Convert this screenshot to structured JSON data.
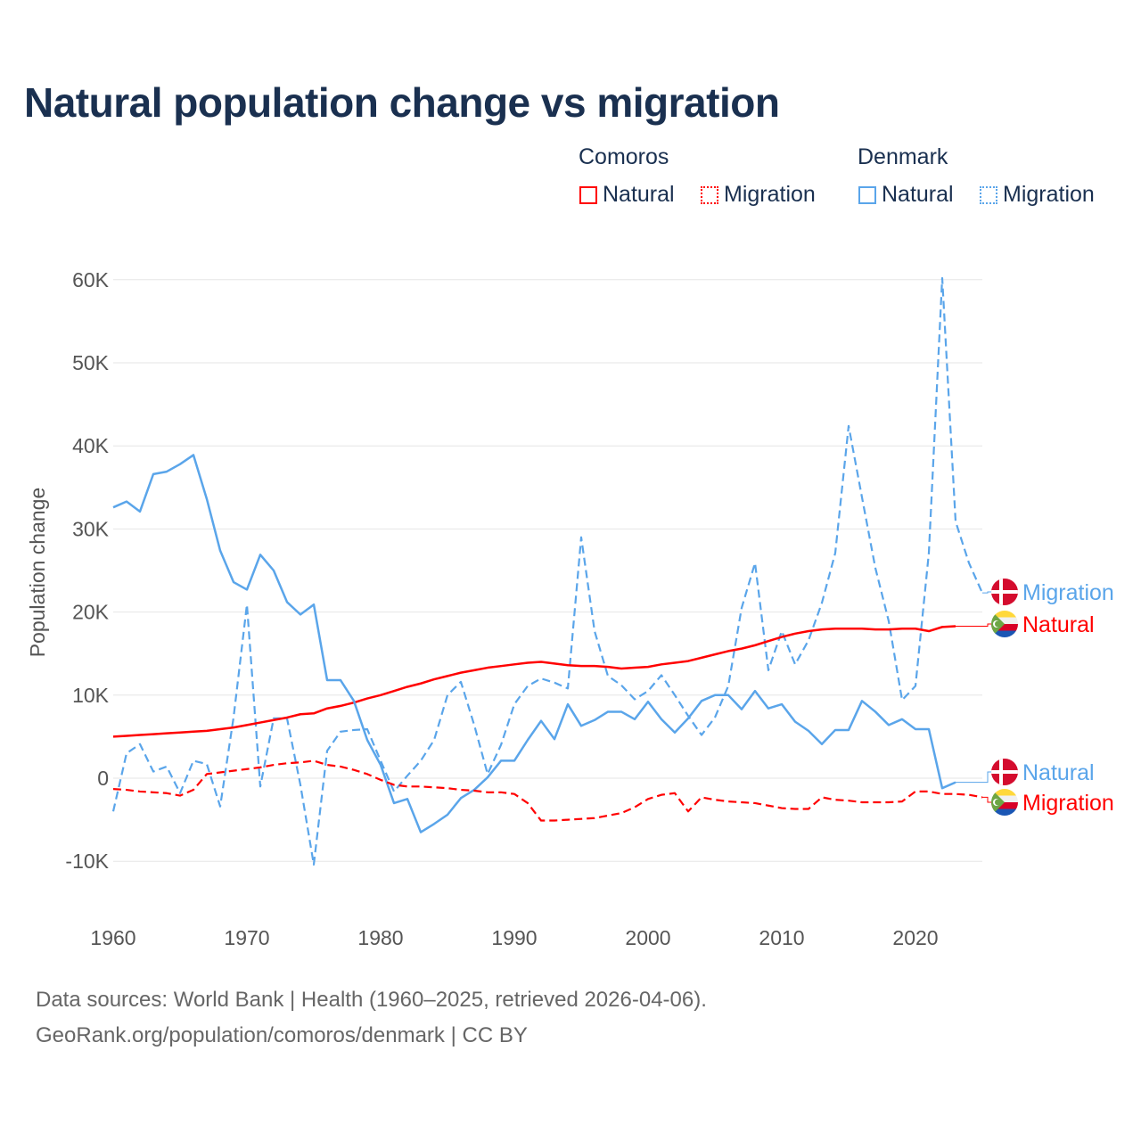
{
  "title": "Natural population change vs migration",
  "legend": {
    "groups": [
      {
        "name": "Comoros",
        "items": [
          {
            "label": "Natural",
            "color": "#ff0000",
            "style": "solid"
          },
          {
            "label": "Migration",
            "color": "#ff0000",
            "style": "dotted"
          }
        ]
      },
      {
        "name": "Denmark",
        "items": [
          {
            "label": "Natural",
            "color": "#5aa5ea",
            "style": "solid"
          },
          {
            "label": "Migration",
            "color": "#5aa5ea",
            "style": "dotted"
          }
        ]
      }
    ]
  },
  "footer": {
    "line1": "Data sources: World Bank | Health (1960–2025, retrieved 2026-04-06).",
    "line2": "GeoRank.org/population/comoros/denmark | CC BY"
  },
  "chart_data": {
    "type": "line",
    "title": "Natural population change vs migration",
    "xlabel": "",
    "ylabel": "Population change",
    "xlim": [
      1960,
      2025
    ],
    "ylim": [
      -15000,
      65000
    ],
    "x_ticks": [
      "1960",
      "1970",
      "1980",
      "1990",
      "2000",
      "2010",
      "2020"
    ],
    "y_ticks": [
      {
        "v": 60000,
        "label": "60K"
      },
      {
        "v": 50000,
        "label": "50K"
      },
      {
        "v": 40000,
        "label": "40K"
      },
      {
        "v": 30000,
        "label": "30K"
      },
      {
        "v": 20000,
        "label": "20K"
      },
      {
        "v": 10000,
        "label": "10K"
      },
      {
        "v": 0,
        "label": "0"
      },
      {
        "v": -10000,
        "label": "-10K"
      }
    ],
    "grid": true,
    "series": [
      {
        "name": "Denmark Migration",
        "end_label": "Migration",
        "country": "Denmark",
        "color": "#5aa5ea",
        "dash": true,
        "start": 1960,
        "values": [
          -4.0,
          3.0,
          4.1,
          0.8,
          1.4,
          -1.8,
          2.1,
          1.7,
          -3.4,
          7.3,
          20.9,
          -1.0,
          7.2,
          7.2,
          -0.8,
          -10.4,
          3.3,
          5.6,
          5.8,
          5.9,
          2.1,
          -1.6,
          0.3,
          2.1,
          4.6,
          10.0,
          11.6,
          6.4,
          0.5,
          4.0,
          8.9,
          11.1,
          12.0,
          11.5,
          10.8,
          29.0,
          17.7,
          12.3,
          11.2,
          9.5,
          10.5,
          12.4,
          10.0,
          7.5,
          5.2,
          7.3,
          11.1,
          20.5,
          25.9,
          13.0,
          17.7,
          13.7,
          16.6,
          21.1,
          27.1,
          42.4,
          33.8,
          25.3,
          18.9,
          9.4,
          11.1,
          27.1,
          60.2,
          30.9,
          25.9,
          22.3
        ]
      },
      {
        "name": "Comoros Natural",
        "end_label": "Natural",
        "country": "Comoros",
        "color": "#ff0000",
        "dash": false,
        "start": 1960,
        "values": [
          5.0,
          5.1,
          5.2,
          5.3,
          5.4,
          5.5,
          5.6,
          5.7,
          5.9,
          6.1,
          6.4,
          6.7,
          7.0,
          7.3,
          7.7,
          7.8,
          8.4,
          8.7,
          9.1,
          9.6,
          10.0,
          10.5,
          11.0,
          11.4,
          11.9,
          12.3,
          12.7,
          13.0,
          13.3,
          13.5,
          13.7,
          13.9,
          14.0,
          13.8,
          13.6,
          13.5,
          13.5,
          13.4,
          13.2,
          13.3,
          13.4,
          13.7,
          13.9,
          14.1,
          14.5,
          14.9,
          15.3,
          15.6,
          16.0,
          16.5,
          17.0,
          17.4,
          17.7,
          17.9,
          18.0,
          18.0,
          18.0,
          17.9,
          17.9,
          18.0,
          18.0,
          17.7,
          18.2,
          18.3
        ]
      },
      {
        "name": "Denmark Natural",
        "end_label": "Natural",
        "country": "Denmark",
        "color": "#5aa5ea",
        "dash": false,
        "start": 1960,
        "values": [
          32.6,
          33.3,
          32.1,
          36.6,
          36.9,
          37.8,
          38.9,
          33.6,
          27.4,
          23.6,
          22.7,
          26.9,
          25.0,
          21.2,
          19.7,
          20.9,
          11.8,
          11.8,
          9.3,
          4.6,
          1.6,
          -3.0,
          -2.5,
          -6.5,
          -5.5,
          -4.4,
          -2.4,
          -1.4,
          0.1,
          2.1,
          2.1,
          4.6,
          6.9,
          4.7,
          8.9,
          6.3,
          7.0,
          8.0,
          8.0,
          7.1,
          9.2,
          7.1,
          5.5,
          7.2,
          9.3,
          10.0,
          10.0,
          8.3,
          10.5,
          8.4,
          8.9,
          6.8,
          5.7,
          4.1,
          5.8,
          5.8,
          9.3,
          8.0,
          6.4,
          7.1,
          5.9,
          5.9,
          -1.2,
          -0.5
        ]
      },
      {
        "name": "Comoros Migration",
        "end_label": "Migration",
        "country": "Comoros",
        "color": "#ff0000",
        "dash": true,
        "start": 1960,
        "values": [
          -1.3,
          -1.4,
          -1.6,
          -1.7,
          -1.8,
          -2.1,
          -1.4,
          0.5,
          0.7,
          0.9,
          1.1,
          1.3,
          1.6,
          1.8,
          1.9,
          2.1,
          1.6,
          1.4,
          1.0,
          0.5,
          -0.2,
          -0.8,
          -1.0,
          -1.0,
          -1.1,
          -1.2,
          -1.4,
          -1.5,
          -1.7,
          -1.7,
          -1.9,
          -3.0,
          -5.1,
          -5.1,
          -5.0,
          -4.9,
          -4.8,
          -4.5,
          -4.2,
          -3.5,
          -2.5,
          -2.0,
          -1.8,
          -4.0,
          -2.3,
          -2.6,
          -2.8,
          -2.9,
          -3.0,
          -3.3,
          -3.6,
          -3.7,
          -3.7,
          -2.3,
          -2.6,
          -2.7,
          -2.9,
          -2.9,
          -2.9,
          -2.8,
          -1.6,
          -1.6,
          -1.9,
          -1.9,
          -2.0,
          -2.3
        ]
      }
    ],
    "units": "thousands"
  }
}
